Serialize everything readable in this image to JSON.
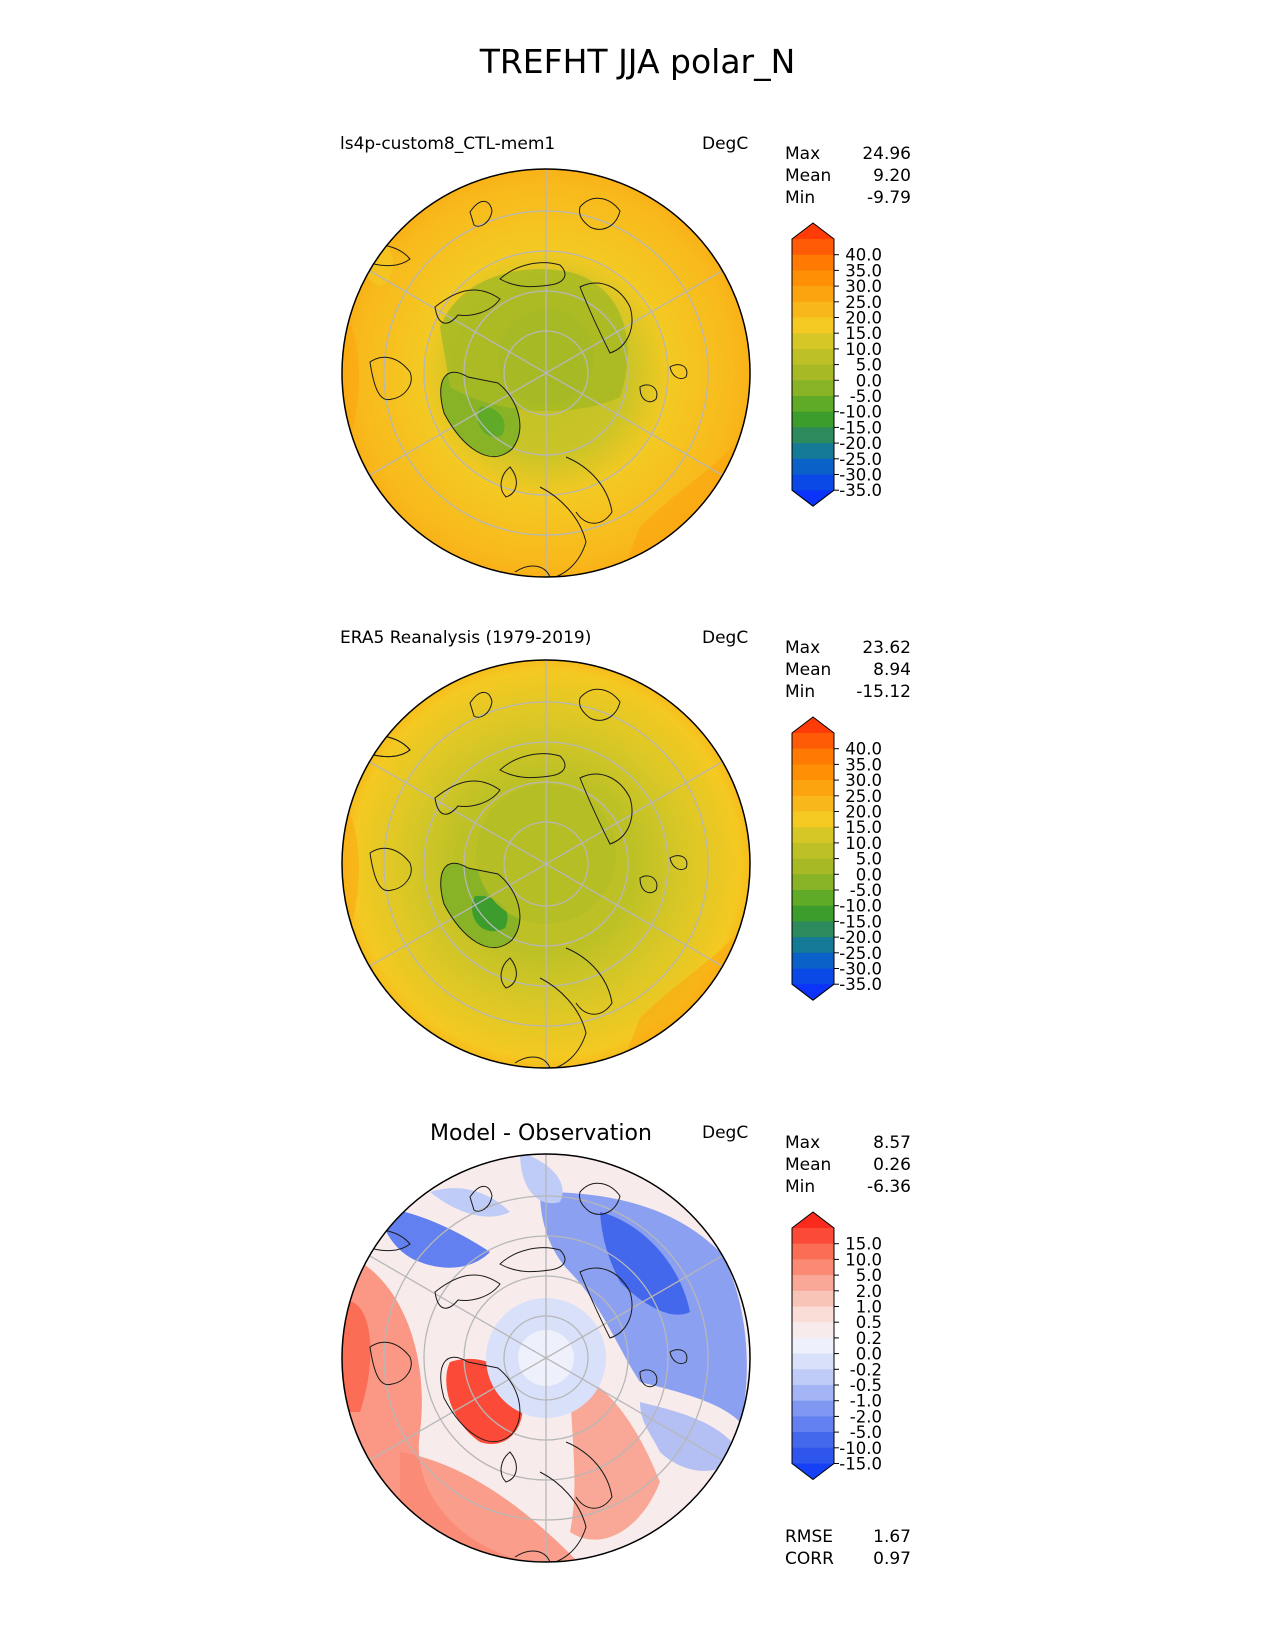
{
  "figure": {
    "title": "TREFHT JJA polar_N",
    "panels": [
      {
        "title": "ls4p-custom8_CTL-mem1",
        "units": "DegC",
        "stats": [
          {
            "label": "Max",
            "value": "24.96"
          },
          {
            "label": "Mean",
            "value": "9.20"
          },
          {
            "label": "Min",
            "value": "-9.79"
          }
        ],
        "colorbar": {
          "labels": [
            "40.0",
            "35.0",
            "30.0",
            "25.0",
            "20.0",
            "15.0",
            "10.0",
            "5.0",
            "0.0",
            "-5.0",
            "-10.0",
            "-15.0",
            "-20.0",
            "-25.0",
            "-30.0",
            "-35.0"
          ],
          "colors": [
            "#ff3b08",
            "#ff5a05",
            "#ff7a03",
            "#ff8f04",
            "#fca40f",
            "#f8b81b",
            "#f4c922",
            "#d7c726",
            "#bec126",
            "#a7ba25",
            "#88b326",
            "#5faa26",
            "#3c9c2c",
            "#2d8a5c",
            "#157a96",
            "#0a62c8",
            "#0a49e6",
            "#0b33fa"
          ]
        }
      },
      {
        "title": "ERA5 Reanalysis (1979-2019)",
        "units": "DegC",
        "stats": [
          {
            "label": "Max",
            "value": "23.62"
          },
          {
            "label": "Mean",
            "value": "8.94"
          },
          {
            "label": "Min",
            "value": "-15.12"
          }
        ],
        "colorbar": {
          "labels": [
            "40.0",
            "35.0",
            "30.0",
            "25.0",
            "20.0",
            "15.0",
            "10.0",
            "5.0",
            "0.0",
            "-5.0",
            "-10.0",
            "-15.0",
            "-20.0",
            "-25.0",
            "-30.0",
            "-35.0"
          ],
          "colors": [
            "#ff3b08",
            "#ff5a05",
            "#ff7a03",
            "#ff8f04",
            "#fca40f",
            "#f8b81b",
            "#f4c922",
            "#d7c726",
            "#bec126",
            "#a7ba25",
            "#88b326",
            "#5faa26",
            "#3c9c2c",
            "#2d8a5c",
            "#157a96",
            "#0a62c8",
            "#0a49e6",
            "#0b33fa"
          ]
        }
      },
      {
        "title": "Model - Observation",
        "units": "DegC",
        "stats": [
          {
            "label": "Max",
            "value": "8.57"
          },
          {
            "label": "Mean",
            "value": "0.26"
          },
          {
            "label": "Min",
            "value": "-6.36"
          }
        ],
        "extra_stats": [
          {
            "label": "RMSE",
            "value": "1.67"
          },
          {
            "label": "CORR",
            "value": "0.97"
          }
        ],
        "colorbar": {
          "labels": [
            "15.0",
            "10.0",
            "5.0",
            "2.0",
            "1.0",
            "0.5",
            "0.2",
            "0.0",
            "-0.2",
            "-0.5",
            "-1.0",
            "-2.0",
            "-5.0",
            "-10.0",
            "-15.0"
          ],
          "colors": [
            "#fa2a1d",
            "#fb4a38",
            "#fb6d55",
            "#fa8a73",
            "#f9a897",
            "#f8c4b8",
            "#f9ddd6",
            "#f7eceb",
            "#eef0fb",
            "#d9e0fa",
            "#c0ccf8",
            "#a3b5f5",
            "#8098f2",
            "#6280ef",
            "#4468ec",
            "#2f56ec",
            "#1540f6"
          ]
        }
      }
    ]
  },
  "chart_data": [
    {
      "type": "polar-contour-map",
      "title": "ls4p-custom8_CTL-mem1",
      "units": "DegC",
      "projection": "North Polar Stereographic",
      "max": 24.96,
      "mean": 9.2,
      "min": -9.79,
      "levels": [
        -35,
        -30,
        -25,
        -20,
        -15,
        -10,
        -5,
        0,
        5,
        10,
        15,
        20,
        25,
        30,
        35,
        40
      ],
      "extend": "both"
    },
    {
      "type": "polar-contour-map",
      "title": "ERA5 Reanalysis (1979-2019)",
      "units": "DegC",
      "projection": "North Polar Stereographic",
      "max": 23.62,
      "mean": 8.94,
      "min": -15.12,
      "levels": [
        -35,
        -30,
        -25,
        -20,
        -15,
        -10,
        -5,
        0,
        5,
        10,
        15,
        20,
        25,
        30,
        35,
        40
      ],
      "extend": "both"
    },
    {
      "type": "polar-contour-map",
      "title": "Model - Observation",
      "units": "DegC",
      "projection": "North Polar Stereographic",
      "max": 8.57,
      "mean": 0.26,
      "min": -6.36,
      "rmse": 1.67,
      "corr": 0.97,
      "levels": [
        -15,
        -10,
        -5,
        -2,
        -1,
        -0.5,
        -0.2,
        0,
        0.2,
        0.5,
        1,
        2,
        5,
        10,
        15
      ],
      "extend": "both"
    }
  ]
}
